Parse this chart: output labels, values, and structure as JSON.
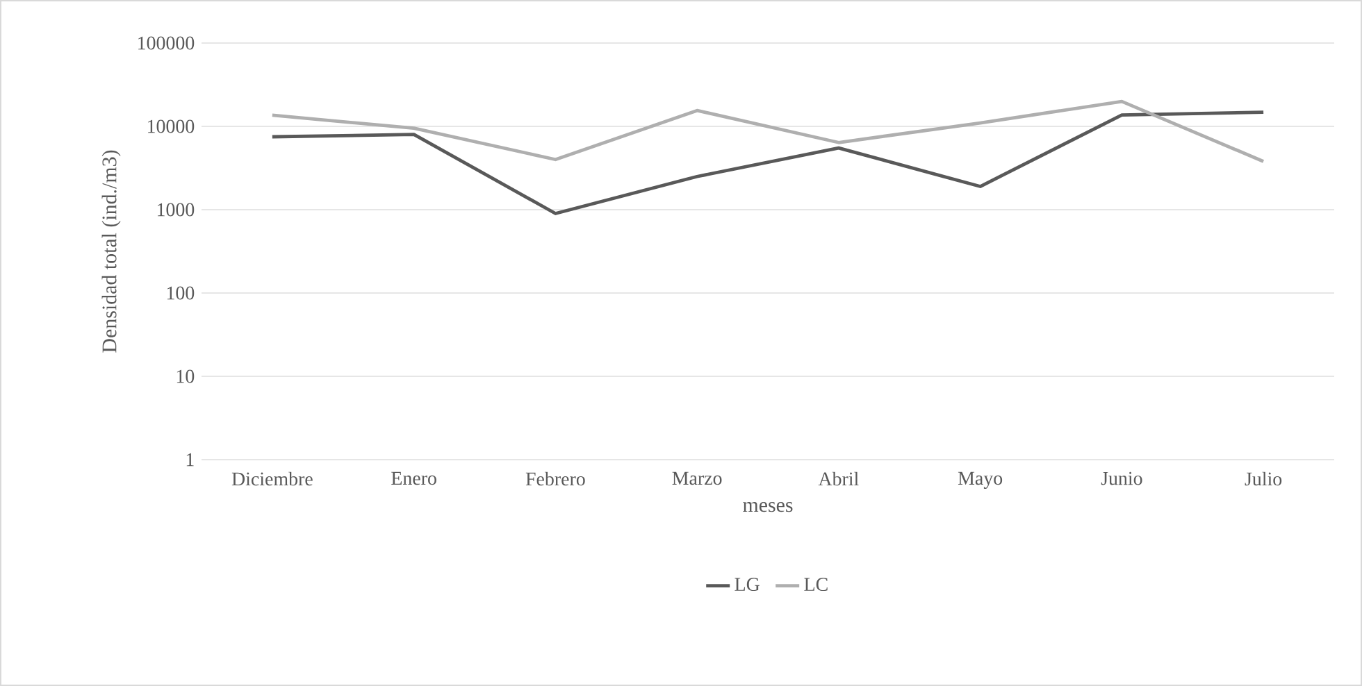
{
  "chart_data": {
    "type": "line",
    "xlabel": "meses",
    "ylabel": "Densidad total (ind./m3)",
    "categories": [
      "Diciembre",
      "Enero",
      "Febrero",
      "Marzo",
      "Abril",
      "Mayo",
      "Junio",
      "Julio"
    ],
    "series": [
      {
        "name": "LG",
        "color": "#595959",
        "values": [
          7500,
          8000,
          900,
          2500,
          5500,
          1900,
          13700,
          14800
        ]
      },
      {
        "name": "LC",
        "color": "#afafaf",
        "values": [
          13600,
          9500,
          4000,
          15500,
          6400,
          11000,
          19900,
          3800
        ]
      }
    ],
    "log": "y",
    "ylim": [
      1,
      100000
    ],
    "yticks": [
      1,
      10,
      100,
      1000,
      10000,
      100000
    ],
    "grid": "y",
    "legend": "bottom",
    "marker": "none",
    "line_style": "solid"
  }
}
